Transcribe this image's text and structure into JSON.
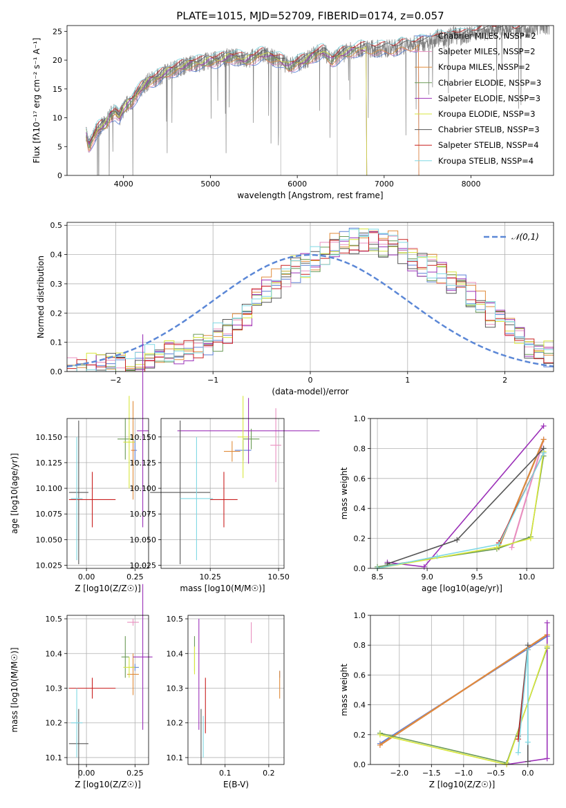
{
  "colors": {
    "Chabrier MILES": "#5b7fd6",
    "Salpeter MILES": "#e88fbf",
    "Kroupa MILES": "#e08b3a",
    "Chabrier ELODIE": "#6a9a55",
    "Salpeter ELODIE": "#9b30b8",
    "Kroupa ELODIE": "#d7e63c",
    "Chabrier STELIB": "#555555",
    "Salpeter STELIB": "#c81e1e",
    "Kroupa STELIB": "#7fd8e3"
  },
  "chart_data": [
    {
      "type": "line",
      "title": "PLATE=1015, MJD=52709, FIBERID=0174, z=0.057",
      "xlabel": "wavelength [Angstrom, rest frame]",
      "ylabel": "Flux [fλ10⁻¹⁷ erg cm⁻² s⁻¹ A⁻¹]",
      "xlim": [
        3350,
        8950
      ],
      "ylim": [
        0,
        26
      ],
      "xticks": [
        4000,
        5000,
        6000,
        7000,
        8000
      ],
      "yticks": [
        0,
        5,
        10,
        15,
        20,
        25
      ],
      "grid": false,
      "legend_position": "right",
      "legend": [
        "Chabrier MILES, NSSP=2",
        "Salpeter MILES, NSSP=2",
        "Kroupa MILES, NSSP=2",
        "Chabrier ELODIE, NSSP=3",
        "Salpeter ELODIE, NSSP=3",
        "Kroupa ELODIE, NSSP=3",
        "Chabrier STELIB, NSSP=3",
        "Salpeter STELIB, NSSP=4",
        "Kroupa STELIB, NSSP=4"
      ],
      "data_series": {
        "name": "data",
        "color": "#808080",
        "x": [
          3570,
          3600,
          3650,
          3700,
          3750,
          3800,
          3850,
          3900,
          3950,
          4000,
          4050,
          4100,
          4150,
          4200,
          4300,
          4400,
          4500,
          4600,
          4700,
          4800,
          4900,
          5000,
          5100,
          5200,
          5300,
          5400,
          5500,
          5600,
          5700,
          5800,
          5900,
          6000,
          6100,
          6200,
          6300,
          6400,
          6500,
          6600,
          6700,
          6800,
          6900,
          7000,
          7100,
          7200,
          7300,
          7400,
          7500,
          7600,
          7700,
          7800,
          7900,
          8000,
          8100,
          8200,
          8300,
          8400,
          8500,
          8600,
          8700,
          8800,
          8900
        ],
        "y": [
          7.5,
          5.0,
          6.5,
          8.0,
          8.5,
          9.0,
          10.5,
          11.0,
          10.0,
          11.5,
          12.5,
          13.0,
          14.0,
          15.0,
          16.5,
          17.0,
          18.0,
          18.5,
          19.0,
          19.5,
          19.5,
          20.0,
          20.0,
          20.5,
          20.5,
          20.0,
          20.5,
          21.0,
          20.5,
          20.0,
          19.0,
          19.5,
          20.0,
          21.0,
          21.5,
          20.0,
          21.0,
          21.5,
          22.0,
          22.0,
          22.0,
          22.0,
          22.0,
          22.5,
          22.5,
          23.0,
          23.0,
          24.0,
          23.5,
          24.5,
          24.0,
          24.5,
          25.0,
          25.0,
          25.5,
          25.5,
          25.0,
          25.5,
          25.5,
          26.0,
          26.0
        ]
      },
      "model_series": [
        {
          "name": "Chabrier MILES",
          "cutoff": 7400
        },
        {
          "name": "Salpeter MILES",
          "cutoff": 7400
        },
        {
          "name": "Kroupa MILES",
          "cutoff": 7400
        },
        {
          "name": "Chabrier ELODIE",
          "cutoff": 6800
        },
        {
          "name": "Salpeter ELODIE",
          "cutoff": 6800
        },
        {
          "name": "Kroupa ELODIE",
          "cutoff": 6800
        },
        {
          "name": "Chabrier STELIB",
          "cutoff": 8900
        },
        {
          "name": "Salpeter STELIB",
          "cutoff": 8900
        },
        {
          "name": "Kroupa STELIB",
          "cutoff": 8900
        }
      ]
    },
    {
      "type": "line",
      "xlabel": "(data-model)/error",
      "ylabel": "Normed distribution",
      "xlim": [
        -2.5,
        2.5
      ],
      "ylim": [
        0,
        0.51
      ],
      "xticks": [
        -2,
        -1,
        0,
        1,
        2
      ],
      "yticks": [
        0.0,
        0.1,
        0.2,
        0.3,
        0.4,
        0.5
      ],
      "grid": true,
      "legend_position": "top-right",
      "legend": [
        "𝒩(0,1)"
      ],
      "bin_centers": [
        -2.45,
        -2.35,
        -2.25,
        -2.15,
        -2.05,
        -1.95,
        -1.85,
        -1.75,
        -1.65,
        -1.55,
        -1.45,
        -1.35,
        -1.25,
        -1.15,
        -1.05,
        -0.95,
        -0.85,
        -0.75,
        -0.65,
        -0.55,
        -0.45,
        -0.35,
        -0.25,
        -0.15,
        -0.05,
        0.05,
        0.15,
        0.25,
        0.35,
        0.45,
        0.55,
        0.65,
        0.75,
        0.85,
        0.95,
        1.05,
        1.15,
        1.25,
        1.35,
        1.45,
        1.55,
        1.65,
        1.75,
        1.85,
        1.95,
        2.05,
        2.15,
        2.25,
        2.35,
        2.45
      ],
      "envelope": [
        0.01,
        0.01,
        0.015,
        0.02,
        0.025,
        0.03,
        0.035,
        0.04,
        0.05,
        0.055,
        0.06,
        0.07,
        0.08,
        0.09,
        0.1,
        0.12,
        0.14,
        0.17,
        0.2,
        0.24,
        0.28,
        0.3,
        0.33,
        0.35,
        0.36,
        0.38,
        0.4,
        0.43,
        0.44,
        0.45,
        0.45,
        0.44,
        0.44,
        0.43,
        0.41,
        0.39,
        0.37,
        0.35,
        0.33,
        0.31,
        0.29,
        0.26,
        0.23,
        0.2,
        0.17,
        0.14,
        0.11,
        0.09,
        0.07,
        0.06
      ]
    },
    {
      "type": "scatter",
      "xlabel": "Z [log10(Z/Z☉)]",
      "ylabel": "age  [log10(age/yr)]",
      "xlim": [
        -0.1,
        0.32
      ],
      "ylim": [
        10.022,
        10.168
      ],
      "xticks": [
        "0.00",
        "0.25"
      ],
      "yticks": [
        "10.025",
        "10.050",
        "10.075",
        "10.100",
        "10.125",
        "10.150"
      ],
      "grid": true,
      "points": [
        {
          "name": "Chabrier MILES",
          "x": 0.25,
          "y": 10.137,
          "xerr": 0.01,
          "yerr": 0.01
        },
        {
          "name": "Salpeter MILES",
          "x": 0.24,
          "y": 10.137,
          "xerr": 0.01,
          "yerr": 0.01
        },
        {
          "name": "Kroupa MILES",
          "x": 0.24,
          "y": 10.137,
          "xerr": 0.01,
          "yerr": 0.048
        },
        {
          "name": "Chabrier ELODIE",
          "x": 0.2,
          "y": 10.148,
          "xerr": 0.04,
          "yerr": 0.02
        },
        {
          "name": "Salpeter ELODIE",
          "x": 0.29,
          "y": 10.156,
          "xerr": 0.03,
          "yerr": 0.094
        },
        {
          "name": "Kroupa ELODIE",
          "x": 0.22,
          "y": 10.145,
          "xerr": 0.03,
          "yerr": 0.045
        },
        {
          "name": "Chabrier STELIB",
          "x": -0.04,
          "y": 10.096,
          "xerr": 0.05,
          "yerr": 0.07
        },
        {
          "name": "Salpeter STELIB",
          "x": 0.03,
          "y": 10.089,
          "xerr": 0.12,
          "yerr": 0.027
        },
        {
          "name": "Kroupa STELIB",
          "x": -0.05,
          "y": 10.09,
          "xerr": 0.03,
          "yerr": 0.06
        }
      ]
    },
    {
      "type": "scatter",
      "xlabel": "mass [log10(M/M☉)]",
      "ylabel": "",
      "xlim": [
        10.07,
        10.52
      ],
      "ylim": [
        10.022,
        10.168
      ],
      "xticks": [
        "10.25",
        "10.50"
      ],
      "yticks": [
        "10.025",
        "10.050",
        "10.075",
        "10.100",
        "10.125",
        "10.150"
      ],
      "grid": true,
      "points": [
        {
          "name": "Chabrier MILES",
          "x": 10.37,
          "y": 10.137,
          "xerr": 0.03,
          "yerr": 0.01
        },
        {
          "name": "Salpeter MILES",
          "x": 10.49,
          "y": 10.142,
          "xerr": 0.02,
          "yerr": 0.036
        },
        {
          "name": "Kroupa MILES",
          "x": 10.33,
          "y": 10.136,
          "xerr": 0.03,
          "yerr": 0.01
        },
        {
          "name": "Chabrier ELODIE",
          "x": 10.4,
          "y": 10.148,
          "xerr": 0.03,
          "yerr": 0.01
        },
        {
          "name": "Salpeter ELODIE",
          "x": 10.39,
          "y": 10.156,
          "xerr": 0.26,
          "yerr": 0.032
        },
        {
          "name": "Kroupa ELODIE",
          "x": 10.37,
          "y": 10.15,
          "xerr": 0.02,
          "yerr": 0.04
        },
        {
          "name": "Chabrier STELIB",
          "x": 10.14,
          "y": 10.096,
          "xerr": 0.11,
          "yerr": 0.07
        },
        {
          "name": "Salpeter STELIB",
          "x": 10.3,
          "y": 10.089,
          "xerr": 0.05,
          "yerr": 0.027
        },
        {
          "name": "Kroupa STELIB",
          "x": 10.2,
          "y": 10.09,
          "xerr": 0.06,
          "yerr": 0.06
        }
      ]
    },
    {
      "type": "line",
      "xlabel": "age  [log10(age/yr)]",
      "ylabel": "mass weight",
      "xlim": [
        8.43,
        10.27
      ],
      "ylim": [
        0,
        1.0
      ],
      "xticks": [
        8.5,
        9.0,
        9.5,
        10.0
      ],
      "yticks": [
        0.0,
        0.2,
        0.4,
        0.6,
        0.8,
        1.0
      ],
      "grid": true,
      "series": [
        {
          "name": "Chabrier MILES",
          "x": [
            9.72,
            10.17
          ],
          "y": [
            0.14,
            0.86
          ]
        },
        {
          "name": "Salpeter MILES",
          "x": [
            9.85,
            10.17
          ],
          "y": [
            0.14,
            0.86
          ]
        },
        {
          "name": "Kroupa MILES",
          "x": [
            9.72,
            10.17
          ],
          "y": [
            0.14,
            0.86
          ]
        },
        {
          "name": "Chabrier ELODIE",
          "x": [
            8.5,
            9.7,
            10.04,
            10.17
          ],
          "y": [
            0.01,
            0.13,
            0.21,
            0.75
          ]
        },
        {
          "name": "Salpeter ELODIE",
          "x": [
            8.6,
            8.97,
            10.17
          ],
          "y": [
            0.04,
            0.01,
            0.95
          ]
        },
        {
          "name": "Kroupa ELODIE",
          "x": [
            8.5,
            9.7,
            10.04,
            10.17
          ],
          "y": [
            0.0,
            0.14,
            0.2,
            0.78
          ]
        },
        {
          "name": "Chabrier STELIB",
          "x": [
            8.6,
            9.3,
            10.17
          ],
          "y": [
            0.03,
            0.19,
            0.8
          ]
        },
        {
          "name": "Salpeter STELIB",
          "x": [
            9.72,
            10.17
          ],
          "y": [
            0.17,
            0.77
          ]
        },
        {
          "name": "Kroupa STELIB",
          "x": [
            8.5,
            9.1,
            9.72,
            10.17
          ],
          "y": [
            0.0,
            0.08,
            0.16,
            0.77
          ]
        }
      ]
    },
    {
      "type": "scatter",
      "xlabel": "Z [log10(Z/Z☉)]",
      "ylabel": "mass [log10(M/M☉)]",
      "xlim": [
        -0.1,
        0.32
      ],
      "ylim": [
        10.08,
        10.51
      ],
      "xticks": [
        "0.00",
        "0.25"
      ],
      "yticks": [
        "10.1",
        "10.2",
        "10.3",
        "10.4",
        "10.5"
      ],
      "grid": true,
      "points": [
        {
          "name": "Chabrier MILES",
          "x": 0.25,
          "y": 10.36,
          "xerr": 0.02,
          "yerr": 0.01
        },
        {
          "name": "Salpeter MILES",
          "x": 0.24,
          "y": 10.49,
          "xerr": 0.03,
          "yerr": 0.01
        },
        {
          "name": "Kroupa MILES",
          "x": 0.24,
          "y": 10.34,
          "xerr": 0.03,
          "yerr": 0.06
        },
        {
          "name": "Chabrier ELODIE",
          "x": 0.2,
          "y": 10.39,
          "xerr": 0.02,
          "yerr": 0.06
        },
        {
          "name": "Salpeter ELODIE",
          "x": 0.29,
          "y": 10.39,
          "xerr": 0.05,
          "yerr": 0.21
        },
        {
          "name": "Kroupa ELODIE",
          "x": 0.22,
          "y": 10.36,
          "xerr": 0.03,
          "yerr": 0.03
        },
        {
          "name": "Chabrier STELIB",
          "x": -0.04,
          "y": 10.14,
          "xerr": 0.05,
          "yerr": 0.1
        },
        {
          "name": "Salpeter STELIB",
          "x": 0.03,
          "y": 10.3,
          "xerr": 0.12,
          "yerr": 0.03
        },
        {
          "name": "Kroupa STELIB",
          "x": -0.05,
          "y": 10.2,
          "xerr": 0.03,
          "yerr": 0.1
        }
      ]
    },
    {
      "type": "scatter",
      "xlabel": "E(B-V)",
      "ylabel": "",
      "xlim": [
        0.015,
        0.235
      ],
      "ylim": [
        10.08,
        10.51
      ],
      "xticks": [
        "0.1",
        "0.2"
      ],
      "yticks": [
        "10.1",
        "10.2",
        "10.3",
        "10.4",
        "10.5"
      ],
      "grid": true,
      "points": [
        {
          "name": "Chabrier MILES",
          "x": 0.225,
          "y": 10.34,
          "yerr": 0.01
        },
        {
          "name": "Salpeter MILES",
          "x": 0.16,
          "y": 10.46,
          "yerr": 0.03
        },
        {
          "name": "Kroupa MILES",
          "x": 0.225,
          "y": 10.31,
          "yerr": 0.04
        },
        {
          "name": "Chabrier ELODIE",
          "x": 0.03,
          "y": 10.4,
          "yerr": 0.05
        },
        {
          "name": "Salpeter ELODIE",
          "x": 0.04,
          "y": 10.34,
          "yerr": 0.16
        },
        {
          "name": "Kroupa ELODIE",
          "x": 0.03,
          "y": 10.38,
          "yerr": 0.04
        },
        {
          "name": "Chabrier STELIB",
          "x": 0.045,
          "y": 10.16,
          "yerr": 0.08
        },
        {
          "name": "Salpeter STELIB",
          "x": 0.055,
          "y": 10.25,
          "yerr": 0.08
        },
        {
          "name": "Kroupa STELIB",
          "x": 0.05,
          "y": 10.16,
          "yerr": 0.06
        }
      ]
    },
    {
      "type": "line",
      "xlabel": "Z [log10(Z/Z☉)]",
      "ylabel": "mass weight",
      "xlim": [
        -2.45,
        0.4
      ],
      "ylim": [
        0,
        1.0
      ],
      "xticks": [
        -2.0,
        -1.5,
        -1.0,
        -0.5,
        0.0
      ],
      "yticks": [
        0.0,
        0.2,
        0.4,
        0.6,
        0.8,
        1.0
      ],
      "grid": true,
      "series": [
        {
          "name": "Chabrier MILES",
          "x": [
            -2.3,
            0.3
          ],
          "y": [
            0.14,
            0.86
          ]
        },
        {
          "name": "Salpeter MILES",
          "x": [
            -2.3,
            0.3
          ],
          "y": [
            0.13,
            0.87
          ]
        },
        {
          "name": "Kroupa MILES",
          "x": [
            -2.3,
            0.3
          ],
          "y": [
            0.13,
            0.87
          ]
        },
        {
          "name": "Chabrier ELODIE",
          "x": [
            -2.3,
            -0.33,
            0.3
          ],
          "y": [
            0.21,
            0.01,
            0.78
          ]
        },
        {
          "name": "Salpeter ELODIE",
          "x": [
            -0.33,
            0.3,
            0.3
          ],
          "y": [
            0.0,
            0.04,
            0.95
          ]
        },
        {
          "name": "Kroupa ELODIE",
          "x": [
            -2.3,
            -0.33,
            0.3
          ],
          "y": [
            0.2,
            0.0,
            0.79
          ]
        },
        {
          "name": "Chabrier STELIB",
          "x": [
            -0.15,
            0.0,
            0.0
          ],
          "y": [
            0.19,
            0.8,
            0.02
          ]
        },
        {
          "name": "Salpeter STELIB",
          "x": [
            -0.15,
            0.0
          ],
          "y": [
            0.17,
            0.77
          ]
        },
        {
          "name": "Kroupa STELIB",
          "x": [
            -0.15,
            0.0,
            0.0
          ],
          "y": [
            0.08,
            0.77,
            0.15
          ]
        }
      ]
    }
  ]
}
